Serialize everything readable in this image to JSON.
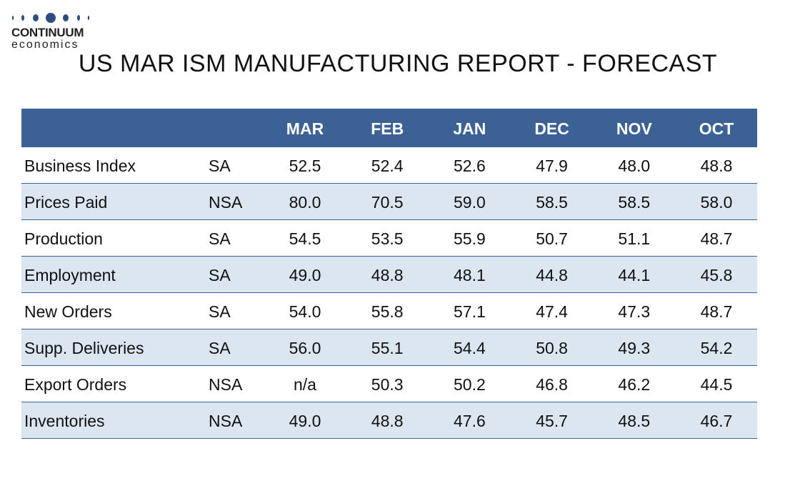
{
  "logo": {
    "name": "CONTINUUM",
    "sub": "economics"
  },
  "title": "US MAR ISM MANUFACTURING REPORT - FORECAST",
  "table": {
    "columns": [
      "MAR",
      "FEB",
      "JAN",
      "DEC",
      "NOV",
      "OCT"
    ],
    "rows": [
      {
        "label": "Business Index",
        "adj": "SA",
        "values": [
          "52.5",
          "52.4",
          "52.6",
          "47.9",
          "48.0",
          "48.8"
        ]
      },
      {
        "label": "Prices Paid",
        "adj": "NSA",
        "values": [
          "80.0",
          "70.5",
          "59.0",
          "58.5",
          "58.5",
          "58.0"
        ]
      },
      {
        "label": "Production",
        "adj": "SA",
        "values": [
          "54.5",
          "53.5",
          "55.9",
          "50.7",
          "51.1",
          "48.7"
        ]
      },
      {
        "label": "Employment",
        "adj": "SA",
        "values": [
          "49.0",
          "48.8",
          "48.1",
          "44.8",
          "44.1",
          "45.8"
        ]
      },
      {
        "label": "New Orders",
        "adj": "SA",
        "values": [
          "54.0",
          "55.8",
          "57.1",
          "47.4",
          "47.3",
          "48.7"
        ]
      },
      {
        "label": "Supp. Deliveries",
        "adj": "SA",
        "values": [
          "56.0",
          "55.1",
          "54.4",
          "50.8",
          "49.3",
          "54.2"
        ]
      },
      {
        "label": "Export Orders",
        "adj": "NSA",
        "values": [
          "n/a",
          "50.3",
          "50.2",
          "46.8",
          "46.2",
          "44.5"
        ]
      },
      {
        "label": "Inventories",
        "adj": "NSA",
        "values": [
          "49.0",
          "48.8",
          "47.6",
          "45.7",
          "48.5",
          "46.7"
        ]
      }
    ]
  }
}
